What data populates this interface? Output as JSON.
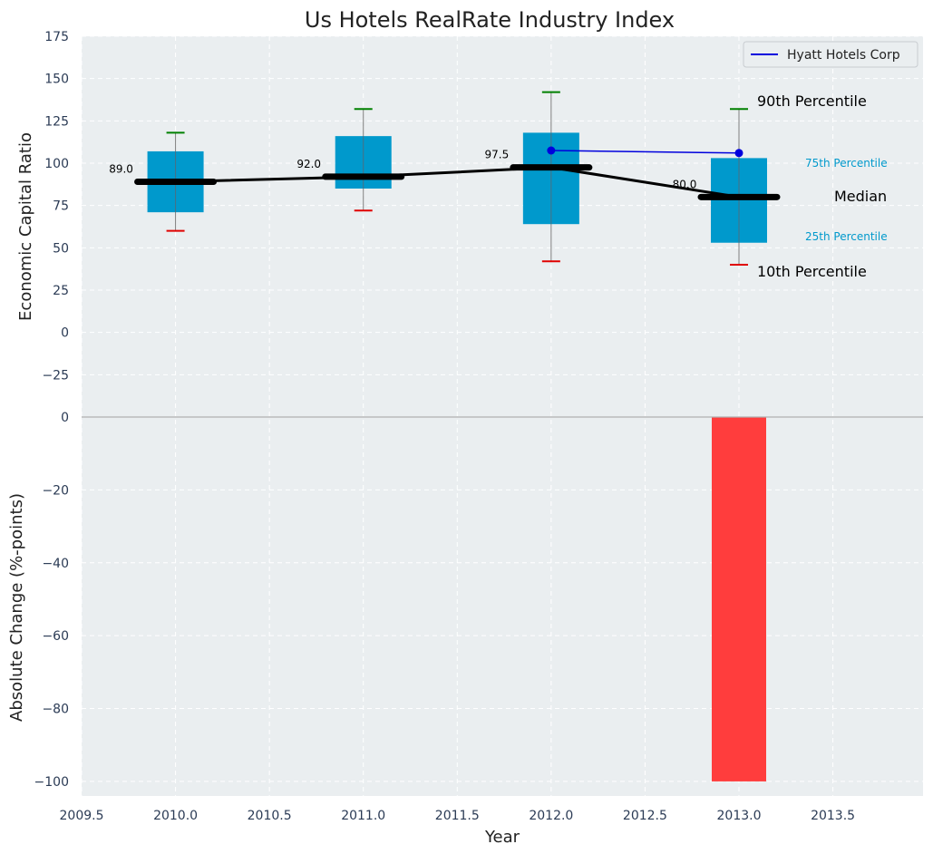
{
  "colors": {
    "panel_bg": "#eaeef0",
    "grid": "#ffffff",
    "box": "#0099cc",
    "median": "#000000",
    "p90": "#008000",
    "p10": "#e00000",
    "company": "#0000dd",
    "change_bar": "#ff3d3d",
    "zero_line": "#b0b0b0",
    "label_blue": "#0099cc"
  },
  "chart_data": [
    {
      "type": "box",
      "title": "Us Hotels RealRate Industry Index",
      "ylabel": "Economic Capital Ratio",
      "ylim": [
        -50,
        175
      ],
      "yticks": [
        "175",
        "150",
        "125",
        "100",
        "75",
        "50",
        "25",
        "0",
        "−25"
      ],
      "ytick_values": [
        175,
        150,
        125,
        100,
        75,
        50,
        25,
        0,
        -25
      ],
      "xlim": [
        2009.5,
        2013.98
      ],
      "grid": true,
      "boxes": [
        {
          "year": 2010,
          "p10": 60,
          "p25": 71,
          "median": 89,
          "p75": 107,
          "p90": 118
        },
        {
          "year": 2011,
          "p10": 72,
          "p25": 85,
          "median": 92,
          "p75": 116,
          "p90": 132
        },
        {
          "year": 2012,
          "p10": 42,
          "p25": 64,
          "median": 97.5,
          "p75": 118,
          "p90": 142
        },
        {
          "year": 2013,
          "p10": 40,
          "p25": 53,
          "median": 80,
          "p75": 103,
          "p90": 132
        }
      ],
      "median_labels": [
        "89.0",
        "92.0",
        "97.5",
        "80.0"
      ],
      "series": [
        {
          "name": "Hyatt Hotels Corp",
          "x": [
            2012,
            2013
          ],
          "values": [
            107.5,
            106
          ]
        }
      ],
      "legend": {
        "placement": "top-right",
        "label": "Hyatt Hotels Corp"
      },
      "annotations": {
        "p90": "90th Percentile",
        "p75": "75th Percentile",
        "median": "Median",
        "p25": "25th Percentile",
        "p10": "10th Percentile"
      }
    },
    {
      "type": "bar",
      "ylabel": "Absolute Change (%-points)",
      "xlabel": "Year",
      "ylim": [
        -104,
        0
      ],
      "yticks": [
        "0",
        "−20",
        "−40",
        "−60",
        "−80",
        "−100"
      ],
      "ytick_values": [
        0,
        -20,
        -40,
        -60,
        -80,
        -100
      ],
      "xticks": [
        "2009.5",
        "2010.0",
        "2010.5",
        "2011.0",
        "2011.5",
        "2012.0",
        "2012.5",
        "2013.0",
        "2013.5"
      ],
      "xtick_values": [
        2009.5,
        2010.0,
        2010.5,
        2011.0,
        2011.5,
        2012.0,
        2012.5,
        2013.0,
        2013.5
      ],
      "x": [
        2013
      ],
      "values": [
        -100
      ],
      "grid": true
    }
  ]
}
